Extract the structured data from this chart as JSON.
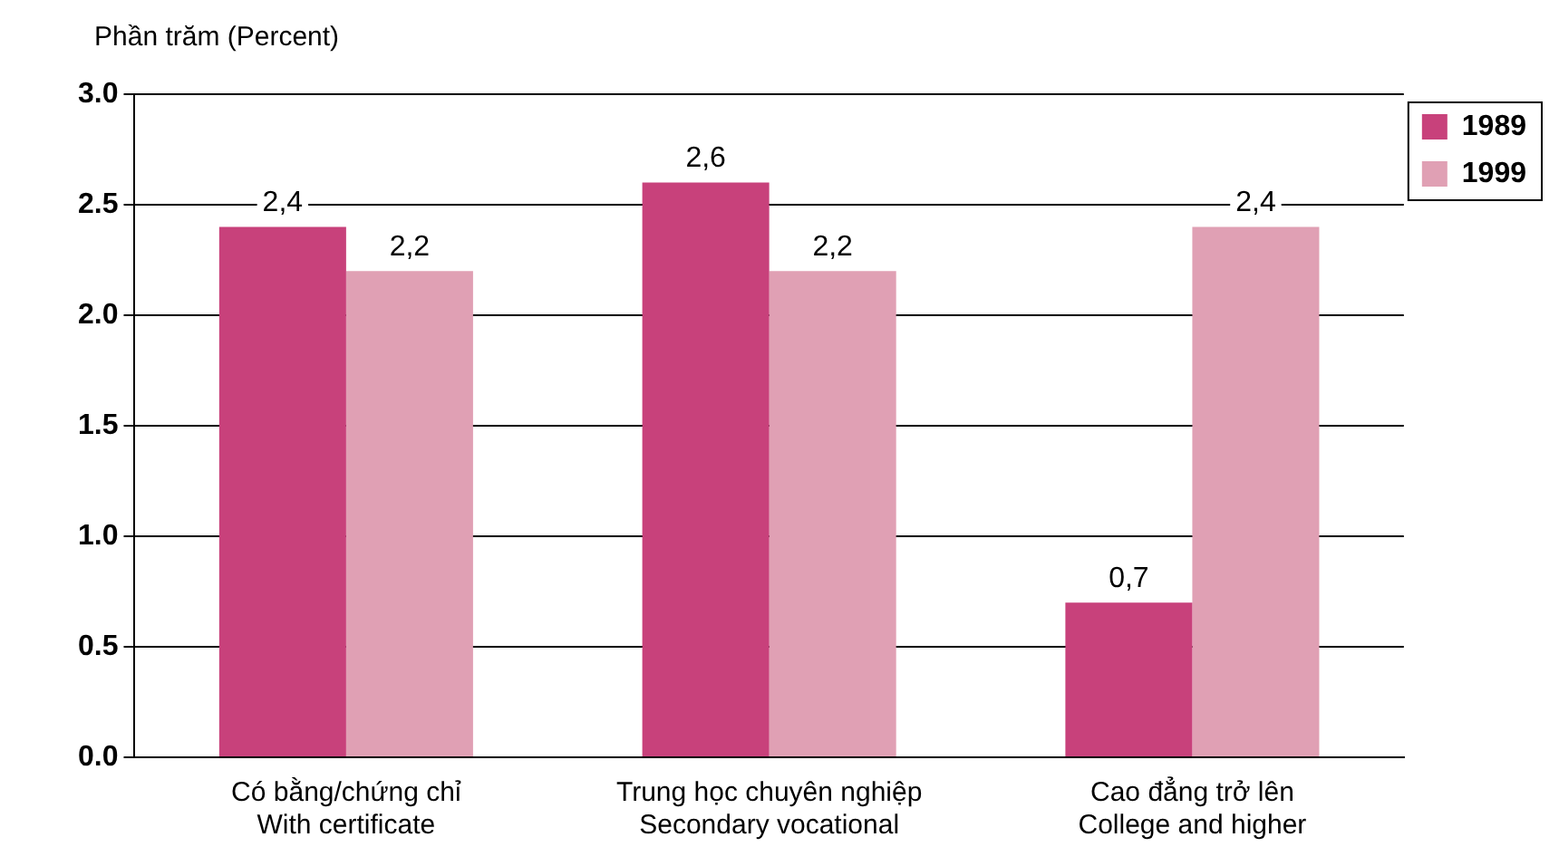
{
  "chart_data": {
    "type": "bar",
    "ylabel": "Phần trăm (Percent)",
    "categories": [
      "Có bằng/chứng chỉ\nWith certificate",
      "Trung học chuyên nghiệp\nSecondary vocational",
      "Cao đẳng trở lên\nCollege and higher"
    ],
    "series": [
      {
        "name": "1989",
        "color": "#c8417b",
        "values": [
          2.4,
          2.6,
          0.7
        ],
        "value_labels": [
          "2,4",
          "2,6",
          "0,7"
        ]
      },
      {
        "name": "1999",
        "color": "#e0a0b4",
        "values": [
          2.2,
          2.2,
          2.4
        ],
        "value_labels": [
          "2,2",
          "2,2",
          "2,4"
        ]
      }
    ],
    "ylim": [
      0,
      3
    ],
    "yticks": [
      {
        "value": 0,
        "label": "0.0"
      },
      {
        "value": 0.5,
        "label": "0.5"
      },
      {
        "value": 1,
        "label": "1.0"
      },
      {
        "value": 1.5,
        "label": "1.5"
      },
      {
        "value": 2,
        "label": "2.0"
      },
      {
        "value": 2.5,
        "label": "2.5"
      },
      {
        "value": 3,
        "label": "3.0"
      }
    ],
    "grid": "y",
    "legend": "top right"
  }
}
